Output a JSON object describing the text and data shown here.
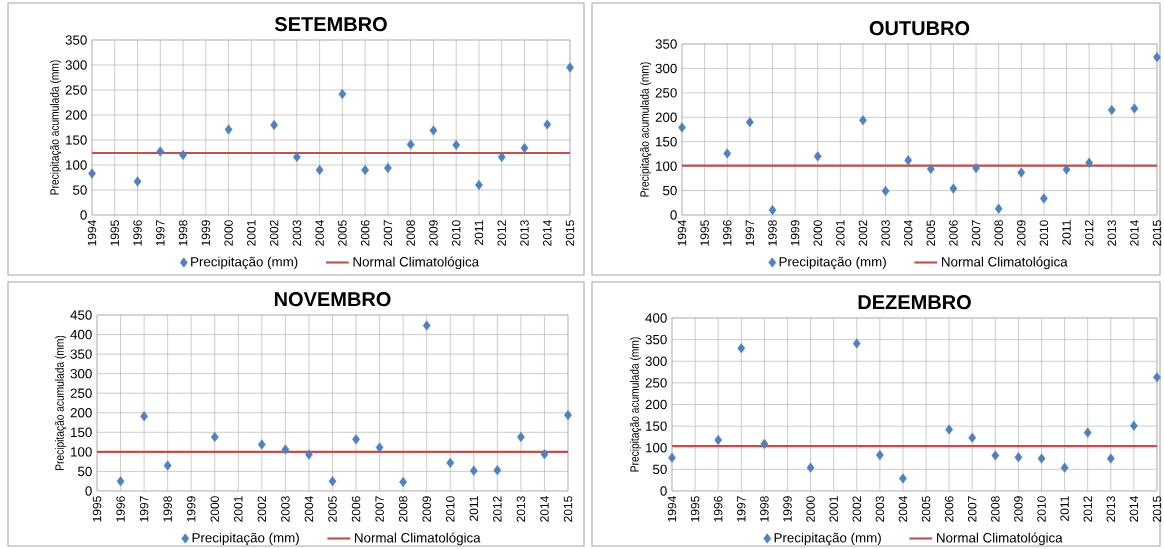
{
  "chart_data": [
    {
      "type": "scatter",
      "title": "SETEMBRO",
      "ylabel": "Precipitação acumulada (mm)",
      "categories": [
        "1994",
        "1995",
        "1996",
        "1997",
        "1998",
        "1999",
        "2000",
        "2001",
        "2002",
        "2003",
        "2004",
        "2005",
        "2006",
        "2007",
        "2008",
        "2009",
        "2010",
        "2011",
        "2012",
        "2013",
        "2014",
        "2015"
      ],
      "series": [
        {
          "name": "Precipitação (mm)",
          "color": "#4f81bd",
          "values": [
            83,
            null,
            67,
            127,
            120,
            null,
            171,
            null,
            180,
            116,
            90,
            242,
            90,
            94,
            141,
            169,
            140,
            60,
            116,
            134,
            181,
            295
          ]
        }
      ],
      "ref_lines": [
        {
          "axis": "y",
          "value": 124,
          "label": "Normal Climatológica",
          "color": "#c0504d"
        }
      ],
      "ylim": [
        0,
        350
      ],
      "yticks": [
        0,
        50,
        100,
        150,
        200,
        250,
        300,
        350
      ],
      "grid": true,
      "legend": "bottom",
      "marker": "diamond"
    },
    {
      "type": "scatter",
      "title": "OUTUBRO",
      "ylabel": "Precipitação acumulada (mm)",
      "categories": [
        "1994",
        "1995",
        "1996",
        "1997",
        "1998",
        "1999",
        "2000",
        "2001",
        "2002",
        "2003",
        "2004",
        "2005",
        "2006",
        "2007",
        "2008",
        "2009",
        "2010",
        "2011",
        "2012",
        "2013",
        "2014",
        "2015"
      ],
      "series": [
        {
          "name": "Precipitação (mm)",
          "color": "#4f81bd",
          "values": [
            179,
            null,
            126,
            190,
            10,
            null,
            120,
            null,
            194,
            49,
            112,
            94,
            54,
            96,
            13,
            87,
            34,
            93,
            107,
            215,
            218,
            323
          ]
        }
      ],
      "ref_lines": [
        {
          "axis": "y",
          "value": 101,
          "label": "Normal Climatológica",
          "color": "#c0504d"
        }
      ],
      "ylim": [
        0,
        350
      ],
      "yticks": [
        0,
        50,
        100,
        150,
        200,
        250,
        300,
        350
      ],
      "grid": true,
      "legend": "bottom",
      "marker": "diamond"
    },
    {
      "type": "scatter",
      "title": "NOVEMBRO",
      "ylabel": "Precipitação acumulada (mm)",
      "categories": [
        "1995",
        "1996",
        "1997",
        "1998",
        "1999",
        "2000",
        "2001",
        "2002",
        "2003",
        "2004",
        "2005",
        "2006",
        "2007",
        "2008",
        "2009",
        "2010",
        "2011",
        "2012",
        "2013",
        "2014",
        "2015"
      ],
      "series": [
        {
          "name": "Precipitação (mm)",
          "color": "#4f81bd",
          "values": [
            null,
            25,
            191,
            65,
            null,
            138,
            null,
            119,
            106,
            93,
            25,
            132,
            111,
            23,
            423,
            72,
            52,
            53,
            138,
            94,
            194
          ]
        }
      ],
      "ref_lines": [
        {
          "axis": "y",
          "value": 100,
          "label": "Normal Climatológica",
          "color": "#c0504d"
        }
      ],
      "ylim": [
        0,
        450
      ],
      "yticks": [
        0,
        50,
        100,
        150,
        200,
        250,
        300,
        350,
        400,
        450
      ],
      "grid": true,
      "legend": "bottom",
      "marker": "diamond"
    },
    {
      "type": "scatter",
      "title": "DEZEMBRO",
      "ylabel": "Precipitação acumulada (mm)",
      "categories": [
        "1994",
        "1995",
        "1996",
        "1997",
        "1998",
        "1999",
        "2000",
        "2001",
        "2002",
        "2003",
        "2004",
        "2005",
        "2006",
        "2007",
        "2008",
        "2009",
        "2010",
        "2011",
        "2012",
        "2013",
        "2014",
        "2015"
      ],
      "series": [
        {
          "name": "Precipitação (mm)",
          "color": "#4f81bd",
          "values": [
            77,
            null,
            118,
            330,
            109,
            null,
            54,
            null,
            341,
            83,
            29,
            null,
            142,
            123,
            82,
            78,
            75,
            54,
            135,
            75,
            151,
            263
          ]
        }
      ],
      "ref_lines": [
        {
          "axis": "y",
          "value": 104,
          "label": "Normal Climatológica",
          "color": "#c0504d"
        }
      ],
      "ylim": [
        0,
        400
      ],
      "yticks": [
        0,
        50,
        100,
        150,
        200,
        250,
        300,
        350,
        400
      ],
      "grid": true,
      "legend": "bottom",
      "marker": "diamond"
    }
  ]
}
